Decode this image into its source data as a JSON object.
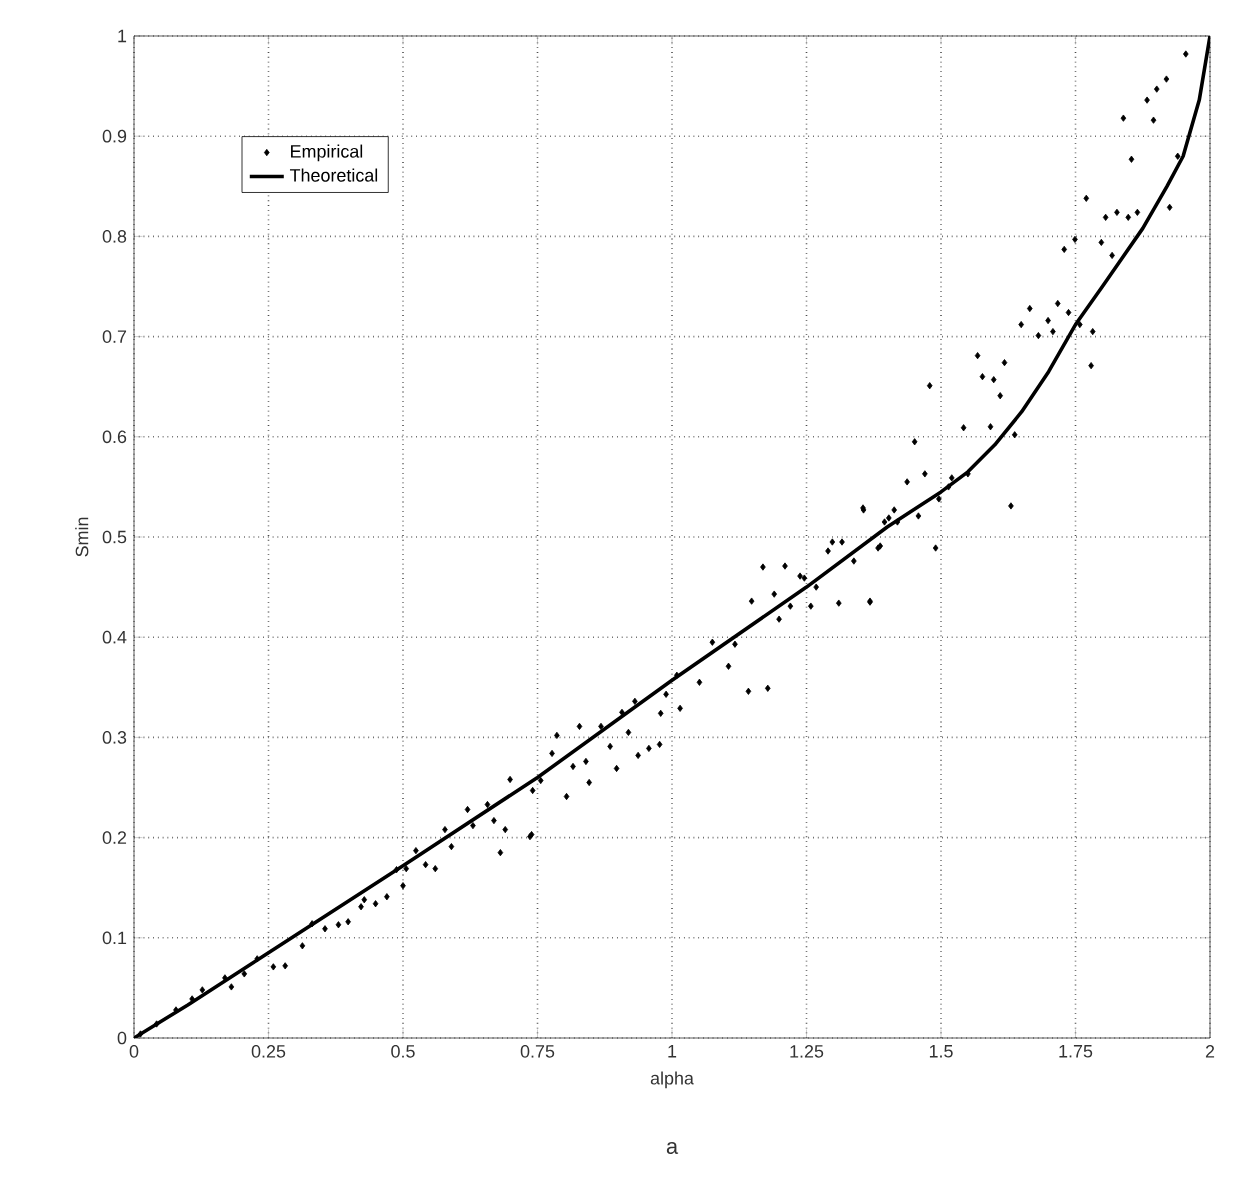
{
  "chart_data": {
    "type": "scatter",
    "xlabel": "alpha",
    "ylabel": "Smin",
    "annotations": [
      "a"
    ],
    "xlim": [
      0,
      2
    ],
    "ylim": [
      0,
      1
    ],
    "xticks": [
      0,
      0.25,
      0.5,
      0.75,
      1,
      1.25,
      1.5,
      1.75,
      2
    ],
    "yticks": [
      0,
      0.1,
      0.2,
      0.3,
      0.4,
      0.5,
      0.6,
      0.7,
      0.8,
      0.9,
      1
    ],
    "grid": true,
    "legend": "top left",
    "series": [
      {
        "name": "Empirical",
        "marker": "diamond",
        "color": "#000000",
        "x": [
          0.012,
          0.042,
          0.078,
          0.108,
          0.127,
          0.169,
          0.181,
          0.205,
          0.229,
          0.259,
          0.281,
          0.313,
          0.331,
          0.355,
          0.38,
          0.398,
          0.422,
          0.428,
          0.449,
          0.47,
          0.488,
          0.5,
          0.506,
          0.524,
          0.542,
          0.56,
          0.578,
          0.59,
          0.62,
          0.63,
          0.657,
          0.669,
          0.681,
          0.69,
          0.699,
          0.739,
          0.741,
          0.736,
          0.756,
          0.777,
          0.786,
          0.804,
          0.816,
          0.828,
          0.84,
          0.846,
          0.868,
          0.885,
          0.897,
          0.907,
          0.919,
          0.931,
          0.937,
          0.957,
          0.977,
          0.979,
          0.989,
          1.015,
          1.009,
          1.051,
          1.075,
          1.105,
          1.117,
          1.142,
          1.178,
          1.148,
          1.169,
          1.19,
          1.199,
          1.21,
          1.22,
          1.238,
          1.246,
          1.258,
          1.268,
          1.29,
          1.298,
          1.316,
          1.31,
          1.338,
          1.368,
          1.355,
          1.383,
          1.403,
          1.356,
          1.387,
          1.395,
          1.419,
          1.458,
          1.49,
          1.368,
          1.413,
          1.437,
          1.47,
          1.496,
          1.514,
          1.52,
          1.55,
          1.63,
          1.542,
          1.592,
          1.637,
          1.451,
          1.479,
          1.568,
          1.577,
          1.598,
          1.618,
          1.61,
          1.649,
          1.665,
          1.681,
          1.699,
          1.708,
          1.717,
          1.737,
          1.758,
          1.782,
          1.779,
          1.729,
          1.749,
          1.798,
          1.818,
          1.77,
          1.806,
          1.827,
          1.848,
          1.865,
          1.925,
          1.839,
          1.895,
          1.854,
          1.94,
          1.883,
          1.901,
          1.919,
          1.955
        ],
        "values": [
          0.004,
          0.014,
          0.028,
          0.039,
          0.048,
          0.06,
          0.051,
          0.064,
          0.079,
          0.071,
          0.072,
          0.092,
          0.114,
          0.109,
          0.113,
          0.116,
          0.131,
          0.138,
          0.134,
          0.141,
          0.168,
          0.152,
          0.169,
          0.187,
          0.173,
          0.169,
          0.208,
          0.191,
          0.228,
          0.212,
          0.233,
          0.217,
          0.185,
          0.208,
          0.258,
          0.203,
          0.247,
          0.201,
          0.257,
          0.284,
          0.302,
          0.241,
          0.271,
          0.311,
          0.276,
          0.255,
          0.311,
          0.291,
          0.269,
          0.325,
          0.305,
          0.336,
          0.282,
          0.289,
          0.293,
          0.324,
          0.343,
          0.329,
          0.362,
          0.355,
          0.395,
          0.371,
          0.393,
          0.346,
          0.349,
          0.436,
          0.47,
          0.443,
          0.418,
          0.471,
          0.431,
          0.461,
          0.459,
          0.431,
          0.45,
          0.486,
          0.495,
          0.495,
          0.434,
          0.476,
          0.436,
          0.529,
          0.489,
          0.519,
          0.527,
          0.491,
          0.515,
          0.515,
          0.521,
          0.489,
          0.435,
          0.527,
          0.555,
          0.563,
          0.538,
          0.55,
          0.559,
          0.563,
          0.531,
          0.609,
          0.61,
          0.602,
          0.595,
          0.651,
          0.681,
          0.66,
          0.657,
          0.674,
          0.641,
          0.712,
          0.728,
          0.701,
          0.716,
          0.705,
          0.733,
          0.724,
          0.712,
          0.705,
          0.671,
          0.787,
          0.797,
          0.794,
          0.781,
          0.838,
          0.819,
          0.824,
          0.819,
          0.824,
          0.829,
          0.918,
          0.916,
          0.877,
          0.88,
          0.936,
          0.947,
          0.957,
          0.982
        ]
      },
      {
        "name": "Theoretical",
        "type": "line",
        "marker": "none",
        "line_style": "solid",
        "color": "#000000",
        "x": [
          0,
          0.1,
          0.25,
          0.5,
          0.75,
          1,
          1.25,
          1.4,
          1.5,
          1.55,
          1.6,
          1.65,
          1.7,
          1.75,
          1.8,
          1.875,
          1.92,
          1.95,
          1.98,
          2
        ],
        "values": [
          0,
          0.033,
          0.085,
          0.172,
          0.26,
          0.357,
          0.45,
          0.51,
          0.545,
          0.565,
          0.592,
          0.625,
          0.665,
          0.712,
          0.75,
          0.808,
          0.85,
          0.88,
          0.936,
          1
        ]
      }
    ]
  }
}
